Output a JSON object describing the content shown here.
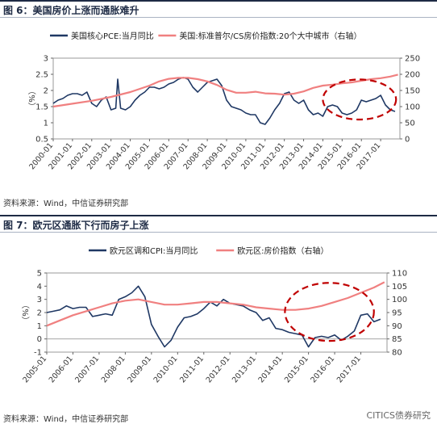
{
  "figures": [
    {
      "title": "图 6：美国房价上涨而通胀难升",
      "source": "资料来源：Wind，中信证券研究部"
    },
    {
      "title": "图 7：欧元区通胀下行而房子上涨",
      "source": "资料来源：Wind，中信证券研究部"
    }
  ],
  "watermark": "CITICS债券研究",
  "colors": {
    "navy": "#1f3864",
    "pink": "#f08080",
    "red": "#c00000"
  },
  "chart_data": [
    {
      "type": "line",
      "legend_placement": "top",
      "y_left_label": "（%）",
      "y_left_range": [
        0.5,
        3
      ],
      "y_left_ticks": [
        "0.5",
        "1",
        "1.5",
        "2",
        "2.5",
        "3"
      ],
      "y_right_range": [
        0,
        250
      ],
      "y_right_ticks": [
        "0",
        "50",
        "100",
        "150",
        "200",
        "250"
      ],
      "x_range": [
        2000.0,
        2018.0
      ],
      "x_ticks": [
        "2000-01",
        "2001-01",
        "2002-01",
        "2003-01",
        "2004-01",
        "2005-01",
        "2006-01",
        "2007-01",
        "2008-01",
        "2009-01",
        "2010-01",
        "2011-01",
        "2012-01",
        "2013-01",
        "2014-01",
        "2015-01",
        "2016-01",
        "2017-01"
      ],
      "annotation": {
        "shape": "dashed-ellipse",
        "x_center": 2015.9,
        "x_radius": 1.9,
        "y_center": 1.72,
        "y_radius": 0.62
      },
      "series": [
        {
          "name": "美国核心PCE:当月同比",
          "axis": "left",
          "color": "#1f3864",
          "x": [
            2000.0,
            2000.25,
            2000.5,
            2000.75,
            2001.0,
            2001.25,
            2001.5,
            2001.75,
            2002.0,
            2002.25,
            2002.5,
            2002.75,
            2003.0,
            2003.25,
            2003.35,
            2003.5,
            2003.75,
            2004.0,
            2004.25,
            2004.5,
            2004.75,
            2005.0,
            2005.25,
            2005.5,
            2005.75,
            2006.0,
            2006.25,
            2006.5,
            2006.75,
            2007.0,
            2007.25,
            2007.5,
            2007.75,
            2008.0,
            2008.25,
            2008.5,
            2008.75,
            2009.0,
            2009.25,
            2009.5,
            2009.75,
            2010.0,
            2010.25,
            2010.5,
            2010.75,
            2011.0,
            2011.25,
            2011.5,
            2011.75,
            2012.0,
            2012.25,
            2012.5,
            2012.75,
            2013.0,
            2013.25,
            2013.5,
            2013.75,
            2014.0,
            2014.25,
            2014.5,
            2014.75,
            2015.0,
            2015.25,
            2015.5,
            2015.75,
            2016.0,
            2016.25,
            2016.5,
            2016.75,
            2017.0,
            2017.25,
            2017.5,
            2017.75
          ],
          "y": [
            1.6,
            1.7,
            1.75,
            1.85,
            1.9,
            1.9,
            1.85,
            1.95,
            1.6,
            1.5,
            1.7,
            1.8,
            1.4,
            1.45,
            2.35,
            1.45,
            1.4,
            1.5,
            1.7,
            1.85,
            1.95,
            2.1,
            2.1,
            2.05,
            2.1,
            2.2,
            2.25,
            2.35,
            2.4,
            2.35,
            2.1,
            1.95,
            2.1,
            2.25,
            2.3,
            2.35,
            2.15,
            1.7,
            1.5,
            1.45,
            1.4,
            1.3,
            1.25,
            1.25,
            1.0,
            0.95,
            1.15,
            1.4,
            1.6,
            1.9,
            1.95,
            1.7,
            1.6,
            1.7,
            1.4,
            1.25,
            1.3,
            1.2,
            1.5,
            1.55,
            1.5,
            1.3,
            1.25,
            1.3,
            1.4,
            1.7,
            1.65,
            1.7,
            1.75,
            1.85,
            1.55,
            1.4,
            1.35
          ]
        },
        {
          "name": "美国:标准普尔/CS房价指数:20个大中城市（右轴）",
          "axis": "right",
          "color": "#f08080",
          "x": [
            2000.0,
            2001.0,
            2002.0,
            2003.0,
            2004.0,
            2005.0,
            2005.5,
            2006.0,
            2006.5,
            2007.0,
            2007.5,
            2008.0,
            2008.5,
            2009.0,
            2009.5,
            2010.0,
            2010.5,
            2011.0,
            2011.5,
            2012.0,
            2012.5,
            2013.0,
            2013.5,
            2014.0,
            2014.5,
            2015.0,
            2015.5,
            2016.0,
            2016.5,
            2017.0,
            2017.5,
            2017.9
          ],
          "y": [
            100,
            109,
            118,
            130,
            145,
            165,
            178,
            186,
            189,
            189,
            185,
            178,
            167,
            152,
            143,
            143,
            146,
            141,
            140,
            137,
            140,
            147,
            158,
            165,
            168,
            172,
            175,
            180,
            185,
            188,
            193,
            199
          ]
        }
      ]
    },
    {
      "type": "line",
      "legend_placement": "top",
      "y_left_label": "（%）",
      "y_left_range": [
        -1,
        5
      ],
      "y_left_ticks": [
        "-1",
        "0",
        "1",
        "2",
        "3",
        "4",
        "5"
      ],
      "y_right_range": [
        80,
        110
      ],
      "y_right_ticks": [
        "80",
        "85",
        "90",
        "95",
        "100",
        "105",
        "110"
      ],
      "x_range": [
        2005.0,
        2018.0
      ],
      "x_ticks": [
        "2005-01",
        "2006-01",
        "2007-01",
        "2008-01",
        "2009-01",
        "2010-01",
        "2011-01",
        "2012-01",
        "2013-01",
        "2014-01",
        "2015-01",
        "2016-01",
        "2017-01"
      ],
      "annotation": {
        "shape": "dashed-ellipse",
        "x_center": 2015.8,
        "x_radius": 1.7,
        "y_center": 2.05,
        "y_radius": 2.2
      },
      "series": [
        {
          "name": "欧元区调和CPI:当月同比",
          "axis": "left",
          "color": "#1f3864",
          "x": [
            2005.0,
            2005.25,
            2005.5,
            2005.75,
            2006.0,
            2006.25,
            2006.5,
            2006.75,
            2007.0,
            2007.25,
            2007.5,
            2007.75,
            2008.0,
            2008.25,
            2008.5,
            2008.75,
            2009.0,
            2009.25,
            2009.5,
            2009.75,
            2010.0,
            2010.25,
            2010.5,
            2010.75,
            2011.0,
            2011.25,
            2011.5,
            2011.75,
            2012.0,
            2012.25,
            2012.5,
            2012.75,
            2013.0,
            2013.25,
            2013.5,
            2013.75,
            2014.0,
            2014.25,
            2014.5,
            2014.75,
            2015.0,
            2015.25,
            2015.5,
            2015.75,
            2016.0,
            2016.25,
            2016.5,
            2016.75,
            2017.0,
            2017.25,
            2017.5,
            2017.75
          ],
          "y": [
            2.0,
            2.1,
            2.2,
            2.5,
            2.3,
            2.4,
            2.4,
            1.7,
            1.8,
            1.9,
            1.8,
            3.0,
            3.2,
            3.5,
            4.0,
            3.2,
            1.1,
            0.2,
            -0.6,
            -0.1,
            0.9,
            1.6,
            1.7,
            1.9,
            2.3,
            2.8,
            2.5,
            3.0,
            2.7,
            2.6,
            2.5,
            2.2,
            2.0,
            1.4,
            1.6,
            0.8,
            0.7,
            0.5,
            0.4,
            0.3,
            -0.6,
            0.1,
            0.2,
            0.1,
            0.3,
            -0.1,
            0.2,
            0.6,
            1.8,
            1.9,
            1.3,
            1.5
          ]
        },
        {
          "name": "欧元区:房价指数（右轴）",
          "axis": "right",
          "color": "#f08080",
          "x": [
            2005.0,
            2005.5,
            2006.0,
            2006.5,
            2007.0,
            2007.5,
            2008.0,
            2008.5,
            2009.0,
            2009.5,
            2010.0,
            2010.5,
            2011.0,
            2011.5,
            2012.0,
            2012.5,
            2013.0,
            2013.5,
            2014.0,
            2014.5,
            2015.0,
            2015.5,
            2016.0,
            2016.5,
            2017.0,
            2017.5,
            2017.9
          ],
          "y": [
            90,
            92,
            94,
            95.5,
            97,
            98.5,
            99.5,
            100,
            99,
            98,
            98,
            98.5,
            99,
            99,
            98.5,
            98,
            97,
            96.5,
            96,
            96,
            96.5,
            97.5,
            99,
            100.5,
            102.5,
            104.5,
            106.5
          ]
        }
      ]
    }
  ]
}
